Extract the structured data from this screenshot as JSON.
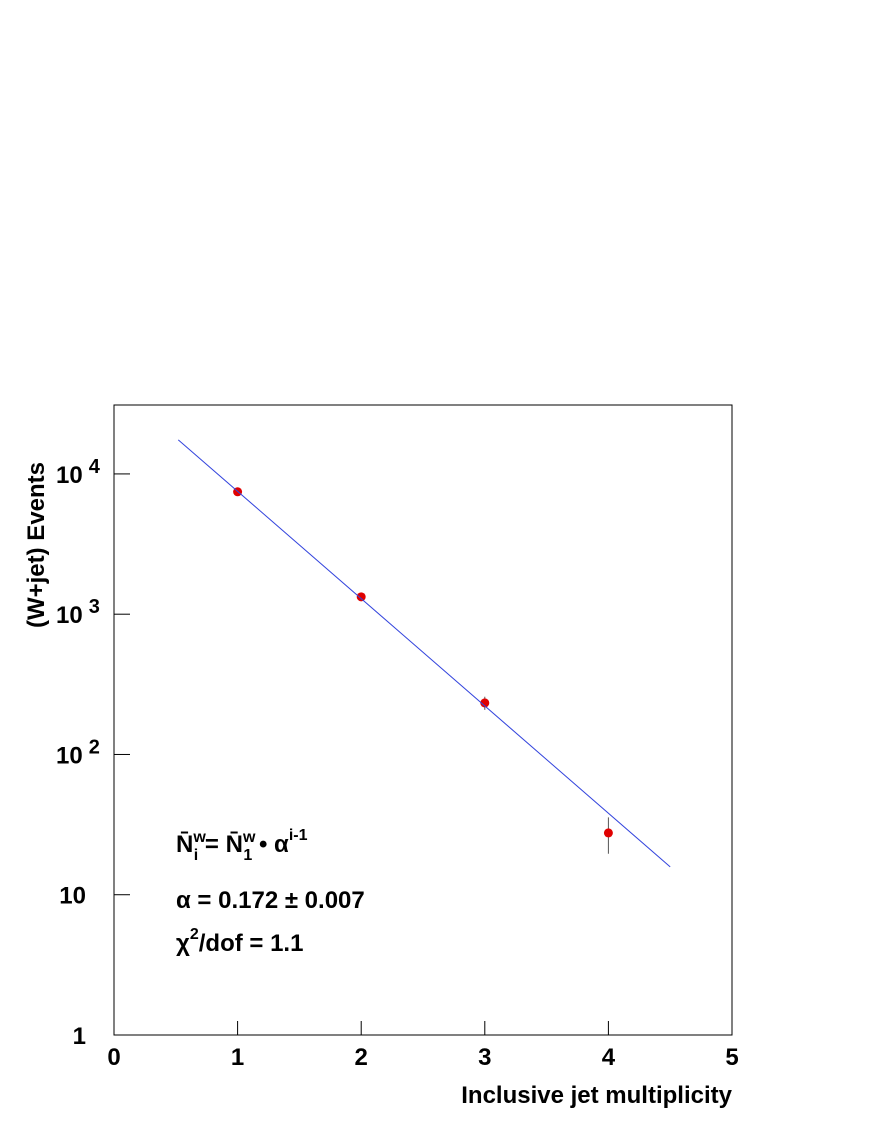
{
  "chart_data": {
    "type": "scatter",
    "x_label": "Inclusive jet multiplicity",
    "y_label": "(W+jet) Events",
    "log_y": true,
    "xlim": [
      0,
      5
    ],
    "ylim": [
      1,
      31000
    ],
    "xticks": [
      0,
      1,
      2,
      3,
      4,
      5
    ],
    "yticks": [
      1,
      10,
      {
        "value": 100,
        "label": "10",
        "exponent": "2"
      },
      {
        "value": 1000,
        "label": "10",
        "exponent": "3"
      },
      {
        "value": 10000,
        "label": "10",
        "exponent": "4"
      }
    ],
    "series": [
      {
        "type": "scatter",
        "color": "#e00000",
        "x": [
          1,
          2,
          3,
          4
        ],
        "values": [
          7460,
          1330,
          233,
          27.6
        ],
        "errors": [
          100,
          40,
          25,
          8
        ]
      },
      {
        "type": "line",
        "color": "#3344dd",
        "x": [
          0.52,
          4.5
        ],
        "values": [
          17500,
          15.8
        ]
      }
    ],
    "annotations": {
      "formula": {
        "n1": "N̄",
        "sup1": "w",
        "sub1": "i",
        "eq": " = ",
        "n2": "N̄",
        "sup2": "w",
        "sub2": "1",
        "times": " • α",
        "exp": "i-1"
      },
      "alpha": "α = 0.172 ± 0.007",
      "chi": {
        "base": "χ",
        "sup": "2",
        "rest": "/dof = 1.1"
      }
    }
  }
}
